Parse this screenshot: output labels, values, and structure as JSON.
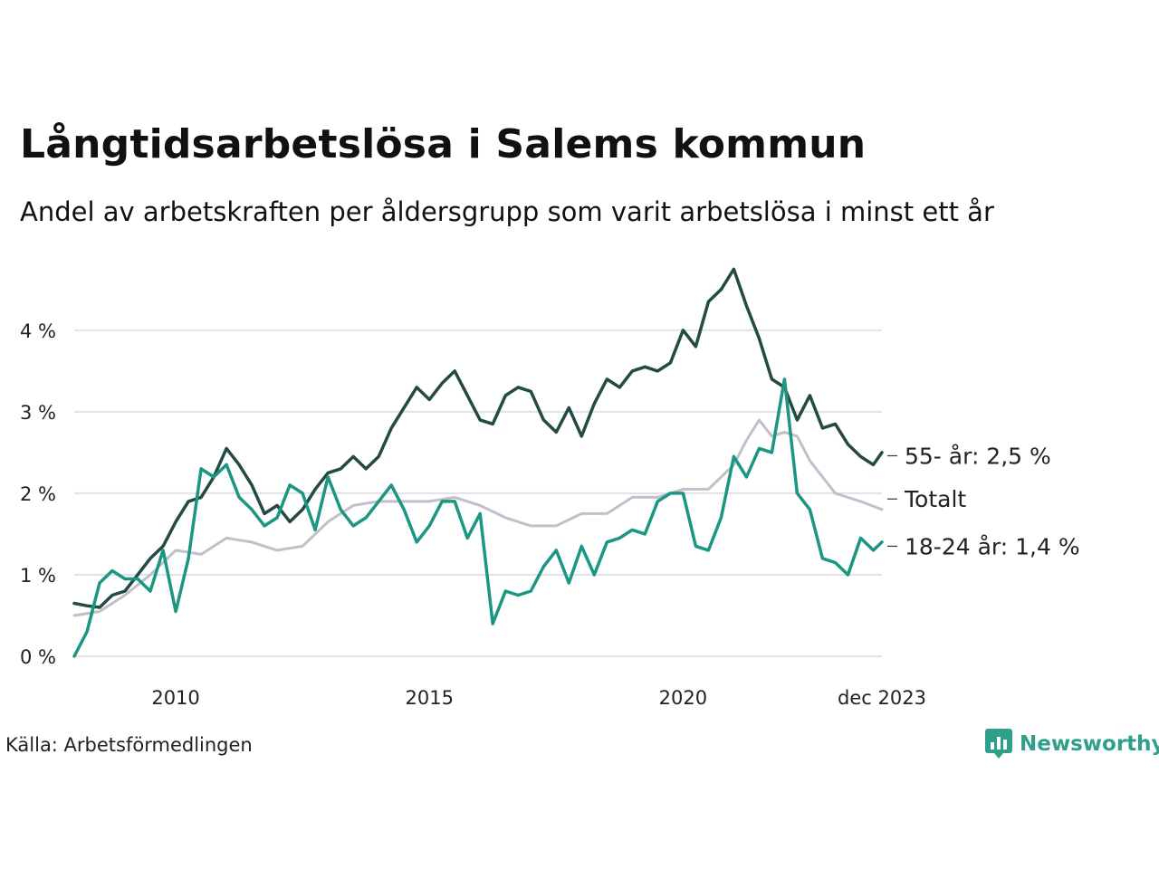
{
  "title": "Långtidsarbetslösa i Salems kommun",
  "subtitle": "Andel av arbetskraften per åldersgrupp som varit arbetslösa i minst ett år",
  "source": "Källa: Arbetsförmedlingen",
  "logo_text": "Newsworthy",
  "colors": {
    "senior": "#234a44",
    "young": "#1b9683",
    "total": "#c2bfcc",
    "grid": "#e1e1e6",
    "brand": "#2f9e8a"
  },
  "chart_data": {
    "type": "line",
    "title": "Långtidsarbetslösa i Salems kommun",
    "subtitle": "Andel av arbetskraften per åldersgrupp som varit arbetslösa i minst ett år",
    "xlim": [
      2008.0,
      2023.92
    ],
    "ylim": [
      0,
      5
    ],
    "y_ticks": [
      0,
      1,
      2,
      3,
      4
    ],
    "y_tick_labels": [
      "0 %",
      "1 %",
      "2 %",
      "3 %",
      "4 %"
    ],
    "x_ticks": [
      2010,
      2015,
      2020,
      2023.92
    ],
    "x_tick_labels": [
      "2010",
      "2015",
      "2020",
      "dec 2023"
    ],
    "grid": "horizontal",
    "series": [
      {
        "name": "Totalt",
        "key": "total",
        "end_label": "Totalt",
        "x": [
          2008.0,
          2008.5,
          2009.0,
          2009.5,
          2010.0,
          2010.5,
          2011.0,
          2011.5,
          2012.0,
          2012.5,
          2013.0,
          2013.5,
          2014.0,
          2014.5,
          2015.0,
          2015.5,
          2016.0,
          2016.5,
          2017.0,
          2017.5,
          2018.0,
          2018.5,
          2019.0,
          2019.5,
          2020.0,
          2020.5,
          2021.0,
          2021.25,
          2021.5,
          2021.75,
          2022.0,
          2022.25,
          2022.5,
          2022.75,
          2023.0,
          2023.5,
          2023.92
        ],
        "y": [
          0.5,
          0.55,
          0.75,
          1.0,
          1.3,
          1.25,
          1.45,
          1.4,
          1.3,
          1.35,
          1.65,
          1.85,
          1.9,
          1.9,
          1.9,
          1.95,
          1.85,
          1.7,
          1.6,
          1.6,
          1.75,
          1.75,
          1.95,
          1.95,
          2.05,
          2.05,
          2.35,
          2.65,
          2.9,
          2.7,
          2.75,
          2.7,
          2.4,
          2.2,
          2.0,
          1.9,
          1.8
        ]
      },
      {
        "name": "55- år",
        "key": "senior",
        "end_label": "55- år: 2,5 %",
        "x": [
          2008.0,
          2008.25,
          2008.5,
          2008.75,
          2009.0,
          2009.25,
          2009.5,
          2009.75,
          2010.0,
          2010.25,
          2010.5,
          2010.75,
          2011.0,
          2011.25,
          2011.5,
          2011.75,
          2012.0,
          2012.25,
          2012.5,
          2012.75,
          2013.0,
          2013.25,
          2013.5,
          2013.75,
          2014.0,
          2014.25,
          2014.5,
          2014.75,
          2015.0,
          2015.25,
          2015.5,
          2015.75,
          2016.0,
          2016.25,
          2016.5,
          2016.75,
          2017.0,
          2017.25,
          2017.5,
          2017.75,
          2018.0,
          2018.25,
          2018.5,
          2018.75,
          2019.0,
          2019.25,
          2019.5,
          2019.75,
          2020.0,
          2020.25,
          2020.5,
          2020.75,
          2021.0,
          2021.25,
          2021.5,
          2021.75,
          2022.0,
          2022.25,
          2022.5,
          2022.75,
          2023.0,
          2023.25,
          2023.5,
          2023.75,
          2023.92
        ],
        "y": [
          0.65,
          0.62,
          0.6,
          0.75,
          0.8,
          1.0,
          1.2,
          1.35,
          1.65,
          1.9,
          1.95,
          2.2,
          2.55,
          2.35,
          2.1,
          1.75,
          1.85,
          1.65,
          1.8,
          2.05,
          2.25,
          2.3,
          2.45,
          2.3,
          2.45,
          2.8,
          3.05,
          3.3,
          3.15,
          3.35,
          3.5,
          3.2,
          2.9,
          2.85,
          3.2,
          3.3,
          3.25,
          2.9,
          2.75,
          3.05,
          2.7,
          3.1,
          3.4,
          3.3,
          3.5,
          3.55,
          3.5,
          3.6,
          4.0,
          3.8,
          4.35,
          4.5,
          4.75,
          4.3,
          3.9,
          3.4,
          3.3,
          2.9,
          3.2,
          2.8,
          2.85,
          2.6,
          2.45,
          2.35,
          2.5
        ]
      },
      {
        "name": "18-24 år",
        "key": "young",
        "end_label": "18-24 år: 1,4 %",
        "x": [
          2008.0,
          2008.25,
          2008.5,
          2008.75,
          2009.0,
          2009.25,
          2009.5,
          2009.75,
          2010.0,
          2010.25,
          2010.5,
          2010.75,
          2011.0,
          2011.25,
          2011.5,
          2011.75,
          2012.0,
          2012.25,
          2012.5,
          2012.75,
          2013.0,
          2013.25,
          2013.5,
          2013.75,
          2014.0,
          2014.25,
          2014.5,
          2014.75,
          2015.0,
          2015.25,
          2015.5,
          2015.75,
          2016.0,
          2016.25,
          2016.5,
          2016.75,
          2017.0,
          2017.25,
          2017.5,
          2017.75,
          2018.0,
          2018.25,
          2018.5,
          2018.75,
          2019.0,
          2019.25,
          2019.5,
          2019.75,
          2020.0,
          2020.25,
          2020.5,
          2020.75,
          2021.0,
          2021.25,
          2021.5,
          2021.75,
          2022.0,
          2022.25,
          2022.5,
          2022.75,
          2023.0,
          2023.25,
          2023.5,
          2023.75,
          2023.92
        ],
        "y": [
          0.0,
          0.3,
          0.9,
          1.05,
          0.95,
          0.95,
          0.8,
          1.3,
          0.55,
          1.2,
          2.3,
          2.2,
          2.35,
          1.95,
          1.8,
          1.6,
          1.7,
          2.1,
          2.0,
          1.55,
          2.2,
          1.8,
          1.6,
          1.7,
          1.9,
          2.1,
          1.8,
          1.4,
          1.6,
          1.9,
          1.9,
          1.45,
          1.75,
          0.4,
          0.8,
          0.75,
          0.8,
          1.1,
          1.3,
          0.9,
          1.35,
          1.0,
          1.4,
          1.45,
          1.55,
          1.5,
          1.9,
          2.0,
          2.0,
          1.35,
          1.3,
          1.7,
          2.45,
          2.2,
          2.55,
          2.5,
          3.4,
          2.0,
          1.8,
          1.2,
          1.15,
          1.0,
          1.45,
          1.3,
          1.4
        ]
      }
    ]
  }
}
